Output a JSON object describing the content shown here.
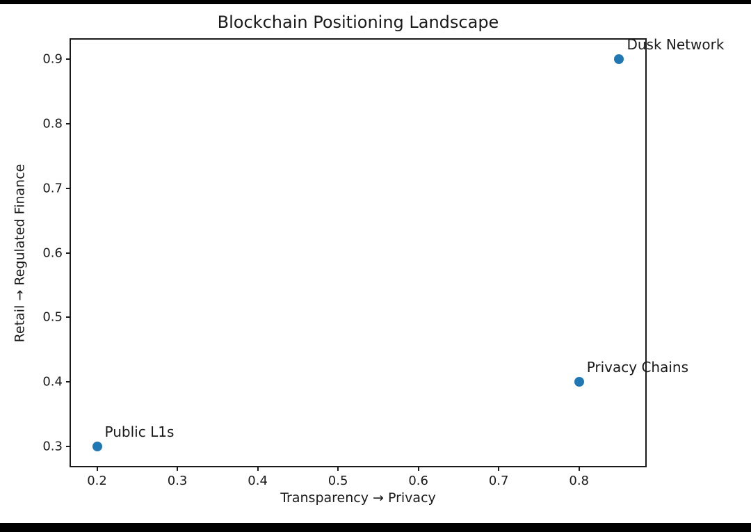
{
  "chart_data": {
    "type": "scatter",
    "title": "Blockchain Positioning Landscape",
    "xlabel": "Transparency → Privacy",
    "ylabel": "Retail → Regulated Finance",
    "xlim": [
      0.1675,
      0.8825
    ],
    "ylim": [
      0.27,
      0.93
    ],
    "xticks": [
      0.2,
      0.3,
      0.4,
      0.5,
      0.6,
      0.7,
      0.8
    ],
    "yticks": [
      0.3,
      0.4,
      0.5,
      0.6,
      0.7,
      0.8,
      0.9
    ],
    "grid": false,
    "legend": "none",
    "marker_color": "#1f77b4",
    "points": [
      {
        "label": "Dusk Network",
        "x": 0.85,
        "y": 0.9
      },
      {
        "label": "Privacy Chains",
        "x": 0.8,
        "y": 0.4
      },
      {
        "label": "Public L1s",
        "x": 0.2,
        "y": 0.3
      }
    ]
  },
  "colors": {
    "background_bars": "#000000",
    "figure_background": "#ffffff",
    "axis_and_text": "#1a1a1a"
  }
}
